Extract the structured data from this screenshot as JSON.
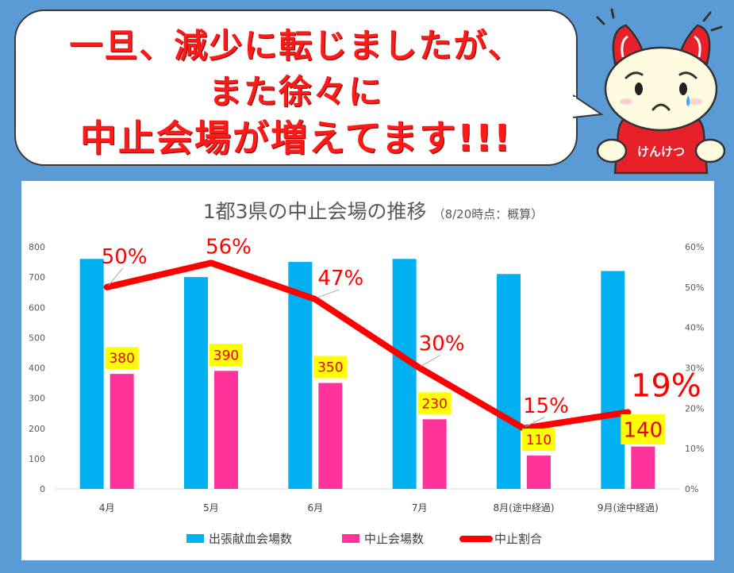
{
  "headline": {
    "line1": "一旦、減少に転じましたが、",
    "line2": "また徐々に",
    "line3": "中止会場が増えてます!!!"
  },
  "mascot": {
    "label": "けんけつ"
  },
  "chart_data": {
    "type": "bar",
    "title": "1都3県の中止会場の推移",
    "subtitle": "（8/20時点：概算）",
    "categories": [
      "4月",
      "5月",
      "6月",
      "7月",
      "8月(途中経過)",
      "9月(途中経過)"
    ],
    "series": [
      {
        "name": "出張献血会場数",
        "type": "bar",
        "color": "#00b0f0",
        "values": [
          760,
          700,
          750,
          760,
          710,
          720
        ]
      },
      {
        "name": "中止会場数",
        "type": "bar",
        "color": "#ff3399",
        "values": [
          380,
          390,
          350,
          230,
          110,
          140
        ]
      },
      {
        "name": "中止割合",
        "type": "line",
        "axis": "right",
        "color": "#ff0000",
        "values": [
          50,
          56,
          47,
          30,
          15,
          19
        ]
      }
    ],
    "bar_labels": [
      "380",
      "390",
      "350",
      "230",
      "110",
      "140"
    ],
    "line_labels": [
      "50%",
      "56%",
      "47%",
      "30%",
      "15%",
      "19%"
    ],
    "y_left": {
      "ylim": [
        0,
        800
      ],
      "ticks": [
        "0",
        "100",
        "200",
        "300",
        "400",
        "500",
        "600",
        "700",
        "800"
      ]
    },
    "y_right": {
      "ylim": [
        0,
        60
      ],
      "ticks": [
        "0%",
        "10%",
        "20%",
        "30%",
        "40%",
        "50%",
        "60%"
      ]
    },
    "legend_position": "bottom",
    "grid": false
  }
}
